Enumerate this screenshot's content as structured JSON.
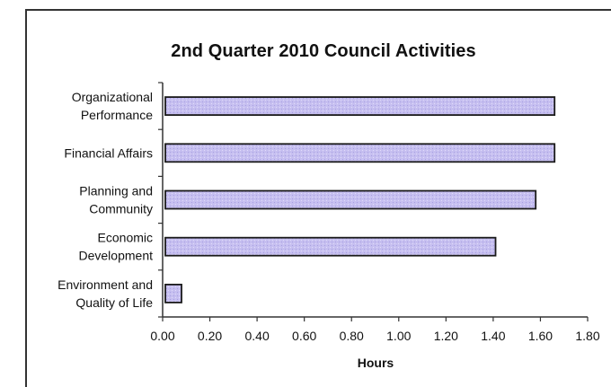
{
  "chart_data": {
    "type": "bar",
    "orientation": "horizontal",
    "title": "2nd Quarter 2010 Council Activities",
    "xlabel": "Hours",
    "ylabel": "",
    "categories": [
      [
        "Organizational",
        "Performance"
      ],
      [
        "Financial Affairs"
      ],
      [
        "Planning and",
        "Community"
      ],
      [
        "Economic",
        "Development"
      ],
      [
        "Environment and",
        "Quality of Life"
      ]
    ],
    "values": [
      1.66,
      1.66,
      1.58,
      1.41,
      0.08
    ],
    "xlim": [
      0,
      1.8
    ],
    "xticks": [
      "0.00",
      "0.20",
      "0.40",
      "0.60",
      "0.80",
      "1.00",
      "1.20",
      "1.40",
      "1.60",
      "1.80"
    ],
    "grid": false,
    "legend": "none",
    "colors": {
      "bar_fill": "#c6bff0",
      "bar_stroke": "#1a1a1a",
      "axis": "#333333",
      "text": "#111111"
    }
  }
}
